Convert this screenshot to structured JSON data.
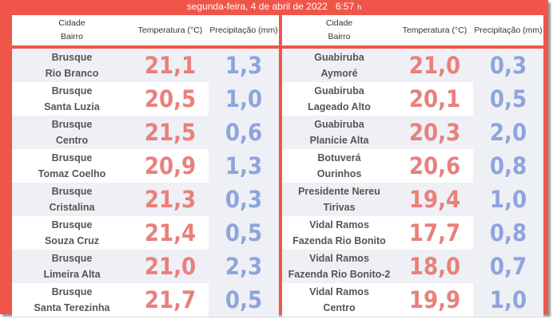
{
  "header": {
    "date": "segunda-feira, 4 de abril de 2022",
    "time": "6:57",
    "unit": "h"
  },
  "columns": {
    "city": "Cidade",
    "district": "Bairro",
    "temperature": "Temperatura (°C)",
    "precipitation": "Precipitação (mm)"
  },
  "colors": {
    "frame": "#f0554a",
    "temperature": "#e8807c",
    "precipitation": "#8ea4dc"
  },
  "left": [
    {
      "city": "Brusque",
      "district": "Rio Branco",
      "temp": "21,1",
      "precip": "1,3"
    },
    {
      "city": "Brusque",
      "district": "Santa Luzia",
      "temp": "20,5",
      "precip": "1,0"
    },
    {
      "city": "Brusque",
      "district": "Centro",
      "temp": "21,5",
      "precip": "0,6"
    },
    {
      "city": "Brusque",
      "district": "Tomaz Coelho",
      "temp": "20,9",
      "precip": "1,3"
    },
    {
      "city": "Brusque",
      "district": "Cristalina",
      "temp": "21,3",
      "precip": "0,3"
    },
    {
      "city": "Brusque",
      "district": "Souza Cruz",
      "temp": "21,4",
      "precip": "0,5"
    },
    {
      "city": "Brusque",
      "district": "Limeira Alta",
      "temp": "21,0",
      "precip": "2,3"
    },
    {
      "city": "Brusque",
      "district": "Santa Terezinha",
      "temp": "21,7",
      "precip": "0,5"
    }
  ],
  "right": [
    {
      "city": "Guabiruba",
      "district": "Aymoré",
      "temp": "21,0",
      "precip": "0,3"
    },
    {
      "city": "Guabiruba",
      "district": "Lageado Alto",
      "temp": "20,1",
      "precip": "0,5"
    },
    {
      "city": "Guabiruba",
      "district": "Planície Alta",
      "temp": "20,3",
      "precip": "2,0"
    },
    {
      "city": "Botuverá",
      "district": "Ourinhos",
      "temp": "20,6",
      "precip": "0,8"
    },
    {
      "city": "Presidente Nereu",
      "district": "Tirivas",
      "temp": "19,4",
      "precip": "1,0"
    },
    {
      "city": "Vidal Ramos",
      "district": "Fazenda Rio Bonito",
      "temp": "17,7",
      "precip": "0,8"
    },
    {
      "city": "Vidal Ramos",
      "district": "Fazenda Rio Bonito-2",
      "temp": "18,0",
      "precip": "0,7"
    },
    {
      "city": "Vidal Ramos",
      "district": "Centro",
      "temp": "19,9",
      "precip": "1,0"
    }
  ]
}
